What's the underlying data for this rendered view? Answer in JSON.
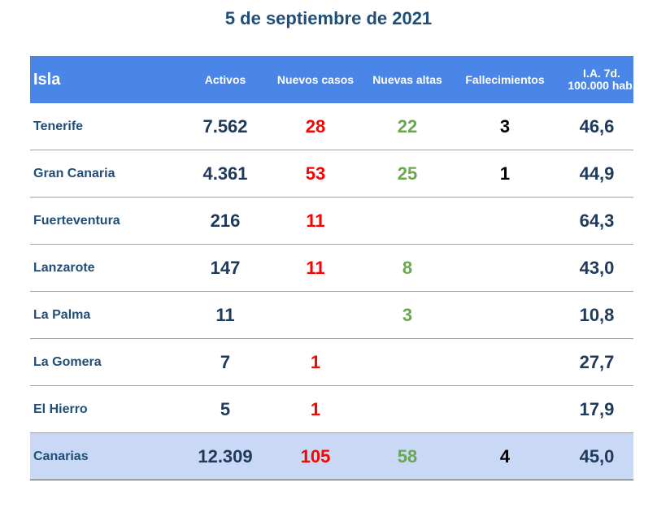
{
  "chart_data": {
    "type": "table",
    "title": "5 de septiembre de 2021",
    "columns": [
      "Isla",
      "Activos",
      "Nuevos casos",
      "Nuevas altas",
      "Fallecimientos",
      "I.A. 7d. 100.000 hab."
    ],
    "rows": [
      {
        "isla": "Tenerife",
        "activos": "7.562",
        "nuevos_casos": "28",
        "nuevas_altas": "22",
        "fallecimientos": "3",
        "ia": "46,6"
      },
      {
        "isla": "Gran Canaria",
        "activos": "4.361",
        "nuevos_casos": "53",
        "nuevas_altas": "25",
        "fallecimientos": "1",
        "ia": "44,9"
      },
      {
        "isla": "Fuerteventura",
        "activos": "216",
        "nuevos_casos": "11",
        "nuevas_altas": "",
        "fallecimientos": "",
        "ia": "64,3"
      },
      {
        "isla": "Lanzarote",
        "activos": "147",
        "nuevos_casos": "11",
        "nuevas_altas": "8",
        "fallecimientos": "",
        "ia": "43,0"
      },
      {
        "isla": "La Palma",
        "activos": "11",
        "nuevos_casos": "",
        "nuevas_altas": "3",
        "fallecimientos": "",
        "ia": "10,8"
      },
      {
        "isla": "La Gomera",
        "activos": "7",
        "nuevos_casos": "1",
        "nuevas_altas": "",
        "fallecimientos": "",
        "ia": "27,7"
      },
      {
        "isla": "El Hierro",
        "activos": "5",
        "nuevos_casos": "1",
        "nuevas_altas": "",
        "fallecimientos": "",
        "ia": "17,9"
      }
    ],
    "total": {
      "isla": "Canarias",
      "activos": "12.309",
      "nuevos_casos": "105",
      "nuevas_altas": "58",
      "fallecimientos": "4",
      "ia": "45,0"
    }
  },
  "colors": {
    "header_bg": "#4a86e8",
    "total_bg": "#c9d9f5",
    "title": "#1f4e79",
    "nuevos_casos": "#ff0000",
    "nuevas_altas": "#6aa84f"
  }
}
